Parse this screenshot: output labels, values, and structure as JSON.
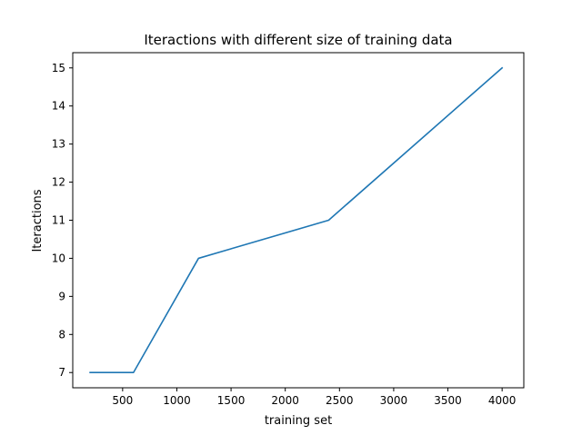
{
  "chart_data": {
    "type": "line",
    "title": "Iteractions with different size of training data",
    "xlabel": "training set",
    "ylabel": "Iteractions",
    "xlim": [
      40,
      4200
    ],
    "ylim": [
      6.6,
      15.4
    ],
    "xticks": [
      500,
      1000,
      1500,
      2000,
      2500,
      3000,
      3500,
      4000
    ],
    "yticks": [
      7,
      8,
      9,
      10,
      11,
      12,
      13,
      14,
      15
    ],
    "grid": false,
    "legend": "none",
    "line_color": "#1f77b4",
    "series": [
      {
        "x": [
          200,
          600,
          1200,
          2400,
          4000
        ],
        "y": [
          7,
          7,
          10,
          11,
          15
        ]
      }
    ]
  }
}
